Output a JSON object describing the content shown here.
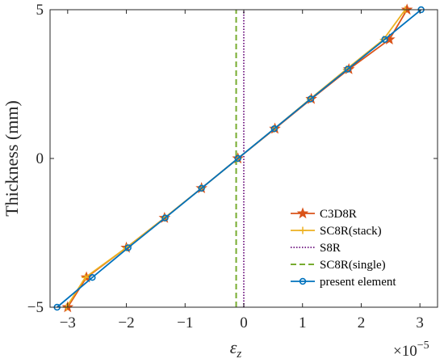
{
  "chart_data": {
    "type": "line",
    "xlabel": "ε",
    "xlabel_sub": "z",
    "ylabel": "Thickness (mm)",
    "x_multiplier_base": "×10",
    "x_multiplier_exp": "−5",
    "xlim": [
      -3.3,
      3.3
    ],
    "ylim": [
      -5,
      5
    ],
    "xticks": [
      -3,
      -2,
      -1,
      0,
      1,
      2,
      3
    ],
    "xtick_labels": [
      "−3",
      "−2",
      "−1",
      "0",
      "1",
      "2",
      "3"
    ],
    "yticks": [
      -5,
      0,
      5
    ],
    "ytick_labels": [
      "−5",
      "0",
      "5"
    ],
    "grid": false,
    "legend_position": "lower-right",
    "series": [
      {
        "name": "C3D8R",
        "color": "#d95319",
        "dash": "solid",
        "marker": "star",
        "x": [
          -3.0,
          -2.68,
          -2.0,
          -1.35,
          -0.72,
          -0.1,
          0.53,
          1.15,
          1.79,
          2.48,
          2.78
        ],
        "y": [
          -5,
          -4,
          -3,
          -2,
          -1,
          0,
          1,
          2,
          3,
          4,
          5
        ]
      },
      {
        "name": "SC8R(stack)",
        "color": "#edb120",
        "dash": "solid",
        "marker": "plus",
        "x": [
          -3.02,
          -2.7,
          -2.0,
          -1.35,
          -0.72,
          -0.1,
          0.52,
          1.13,
          1.75,
          2.38,
          2.75
        ],
        "y": [
          -5,
          -4,
          -3,
          -2,
          -1,
          0,
          1,
          2,
          3,
          4,
          5
        ]
      },
      {
        "name": "S8R",
        "color": "#7e2f8e",
        "dash": "dotted",
        "marker": "none",
        "x": [
          0.0,
          0.0
        ],
        "y": [
          -5,
          5
        ]
      },
      {
        "name": "SC8R(single)",
        "color": "#77ac30",
        "dash": "dashed",
        "marker": "none",
        "x": [
          -0.13,
          -0.13
        ],
        "y": [
          -5,
          5
        ]
      },
      {
        "name": "present element",
        "color": "#0072bd",
        "dash": "solid",
        "marker": "circle",
        "x": [
          -3.18,
          -2.58,
          -1.97,
          -1.34,
          -0.72,
          -0.1,
          0.52,
          1.14,
          1.77,
          2.4,
          3.02
        ],
        "y": [
          -5,
          -4,
          -3,
          -2,
          -1,
          0,
          1,
          2,
          3,
          4,
          5
        ]
      }
    ]
  }
}
